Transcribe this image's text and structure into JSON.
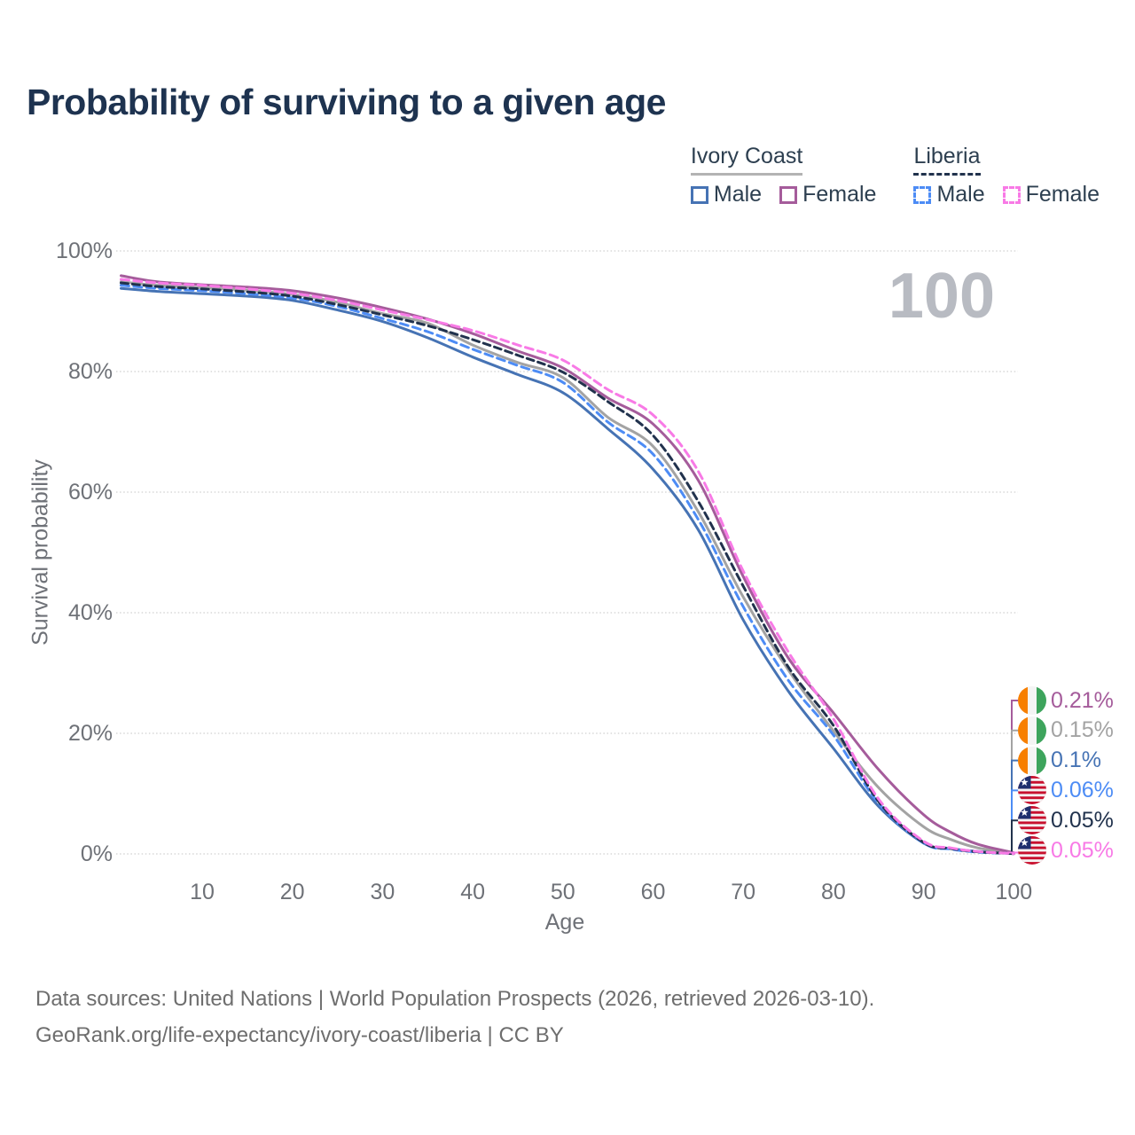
{
  "title": "Probability of surviving to a given age",
  "watermark": "100",
  "legend": {
    "groups": [
      {
        "name": "Ivory Coast",
        "underline_style": "solid",
        "underline_color": "#b3b3b3",
        "items": [
          {
            "label": "Male",
            "color": "#4673b4",
            "dashed": false
          },
          {
            "label": "Female",
            "color": "#a55c9b",
            "dashed": false
          }
        ]
      },
      {
        "name": "Liberia",
        "underline_style": "dashed",
        "underline_color": "#21324d",
        "items": [
          {
            "label": "Male",
            "color": "#4d8cf5",
            "dashed": true
          },
          {
            "label": "Female",
            "color": "#f87ae6",
            "dashed": true
          }
        ]
      }
    ]
  },
  "axes": {
    "x_label": "Age",
    "y_label": "Survival probability",
    "y_ticks": [
      {
        "label": "100%",
        "value": 100
      },
      {
        "label": "80%",
        "value": 80
      },
      {
        "label": "60%",
        "value": 60
      },
      {
        "label": "40%",
        "value": 40
      },
      {
        "label": "20%",
        "value": 20
      },
      {
        "label": "0%",
        "value": 0
      }
    ],
    "x_ticks": [
      {
        "label": "10",
        "value": 10
      },
      {
        "label": "20",
        "value": 20
      },
      {
        "label": "30",
        "value": 30
      },
      {
        "label": "40",
        "value": 40
      },
      {
        "label": "50",
        "value": 50
      },
      {
        "label": "60",
        "value": 60
      },
      {
        "label": "70",
        "value": 70
      },
      {
        "label": "80",
        "value": 80
      },
      {
        "label": "90",
        "value": 90
      },
      {
        "label": "100",
        "value": 100
      }
    ]
  },
  "chart_data": {
    "type": "line",
    "title": "Probability of surviving to a given age",
    "xlabel": "Age",
    "ylabel": "Survival probability",
    "xlim": [
      0,
      100
    ],
    "ylim": [
      0,
      100
    ],
    "grid": "horizontal-dotted",
    "legend_position": "top-right",
    "ages": [
      1,
      5,
      10,
      15,
      20,
      25,
      30,
      35,
      40,
      45,
      50,
      55,
      60,
      65,
      70,
      75,
      80,
      85,
      90,
      93,
      96,
      100
    ],
    "series": [
      {
        "id": "ic-male",
        "name": "Ivory Coast Male",
        "color": "#4673b4",
        "dash": "solid",
        "values": [
          93.8,
          93.3,
          92.9,
          92.5,
          91.8,
          90.2,
          88.3,
          85.6,
          82.4,
          79.5,
          76.5,
          70.5,
          63.8,
          53.8,
          38.8,
          27.0,
          17.5,
          7.9,
          1.8,
          0.9,
          0.4,
          0.1
        ]
      },
      {
        "id": "ic-all",
        "name": "Ivory Coast Both sexes",
        "color": "#a3a3a3",
        "dash": "solid",
        "values": [
          94.9,
          94.3,
          93.9,
          93.5,
          92.8,
          91.5,
          89.6,
          88.0,
          84.4,
          81.5,
          79.0,
          72.4,
          67.6,
          56.8,
          42.6,
          30.5,
          20.4,
          11.0,
          4.5,
          2.4,
          1.0,
          0.15
        ]
      },
      {
        "id": "ic-female",
        "name": "Ivory Coast Female",
        "color": "#a55c9b",
        "dash": "solid",
        "values": [
          95.9,
          94.9,
          94.4,
          94.0,
          93.4,
          92.2,
          90.6,
          88.7,
          86.3,
          83.4,
          80.6,
          75.6,
          71.3,
          62.0,
          46.0,
          32.5,
          23.4,
          14.0,
          6.5,
          3.6,
          1.6,
          0.21
        ]
      },
      {
        "id": "lib-male",
        "name": "Liberia Male",
        "color": "#4d8cf5",
        "dash": "9 5.5",
        "values": [
          94.3,
          93.8,
          93.4,
          92.9,
          92.2,
          90.8,
          88.8,
          86.6,
          83.7,
          81.0,
          78.2,
          71.6,
          66.3,
          55.5,
          41.0,
          28.8,
          19.7,
          8.4,
          1.8,
          0.8,
          0.3,
          0.06
        ]
      },
      {
        "id": "lib-all",
        "name": "Liberia Both sexes",
        "color": "#21324d",
        "dash": "8 5",
        "values": [
          94.7,
          94.1,
          93.7,
          93.2,
          92.5,
          91.1,
          89.4,
          87.6,
          85.3,
          82.7,
          79.9,
          75.0,
          69.4,
          58.5,
          44.4,
          31.0,
          21.3,
          8.7,
          1.9,
          0.9,
          0.35,
          0.05
        ]
      },
      {
        "id": "lib-female",
        "name": "Liberia Female",
        "color": "#f87ae6",
        "dash": "9 5.5",
        "values": [
          95.3,
          94.7,
          94.3,
          93.7,
          93.0,
          91.8,
          90.2,
          88.6,
          86.8,
          84.4,
          81.9,
          77.0,
          72.8,
          63.5,
          46.9,
          33.5,
          22.4,
          9.1,
          2.1,
          1.0,
          0.4,
          0.05
        ]
      }
    ],
    "end_labels": [
      {
        "value": "0.21%",
        "series": "ic-female",
        "flag": "ivory-coast",
        "color": "#a55c9b"
      },
      {
        "value": "0.15%",
        "series": "ic-all",
        "flag": "ivory-coast",
        "color": "#a3a3a3"
      },
      {
        "value": "0.1%",
        "series": "ic-male",
        "flag": "ivory-coast",
        "color": "#4673b4"
      },
      {
        "value": "0.06%",
        "series": "lib-male",
        "flag": "liberia",
        "color": "#4d8cf5"
      },
      {
        "value": "0.05%",
        "series": "lib-all",
        "flag": "liberia",
        "color": "#21324d"
      },
      {
        "value": "0.05%",
        "series": "lib-female",
        "flag": "liberia",
        "color": "#f87ae6"
      }
    ]
  },
  "footer": {
    "line1": "Data sources: United Nations | World Population Prospects (2026, retrieved 2026-03-10).",
    "line2": "GeoRank.org/life-expectancy/ivory-coast/liberia | CC BY"
  }
}
